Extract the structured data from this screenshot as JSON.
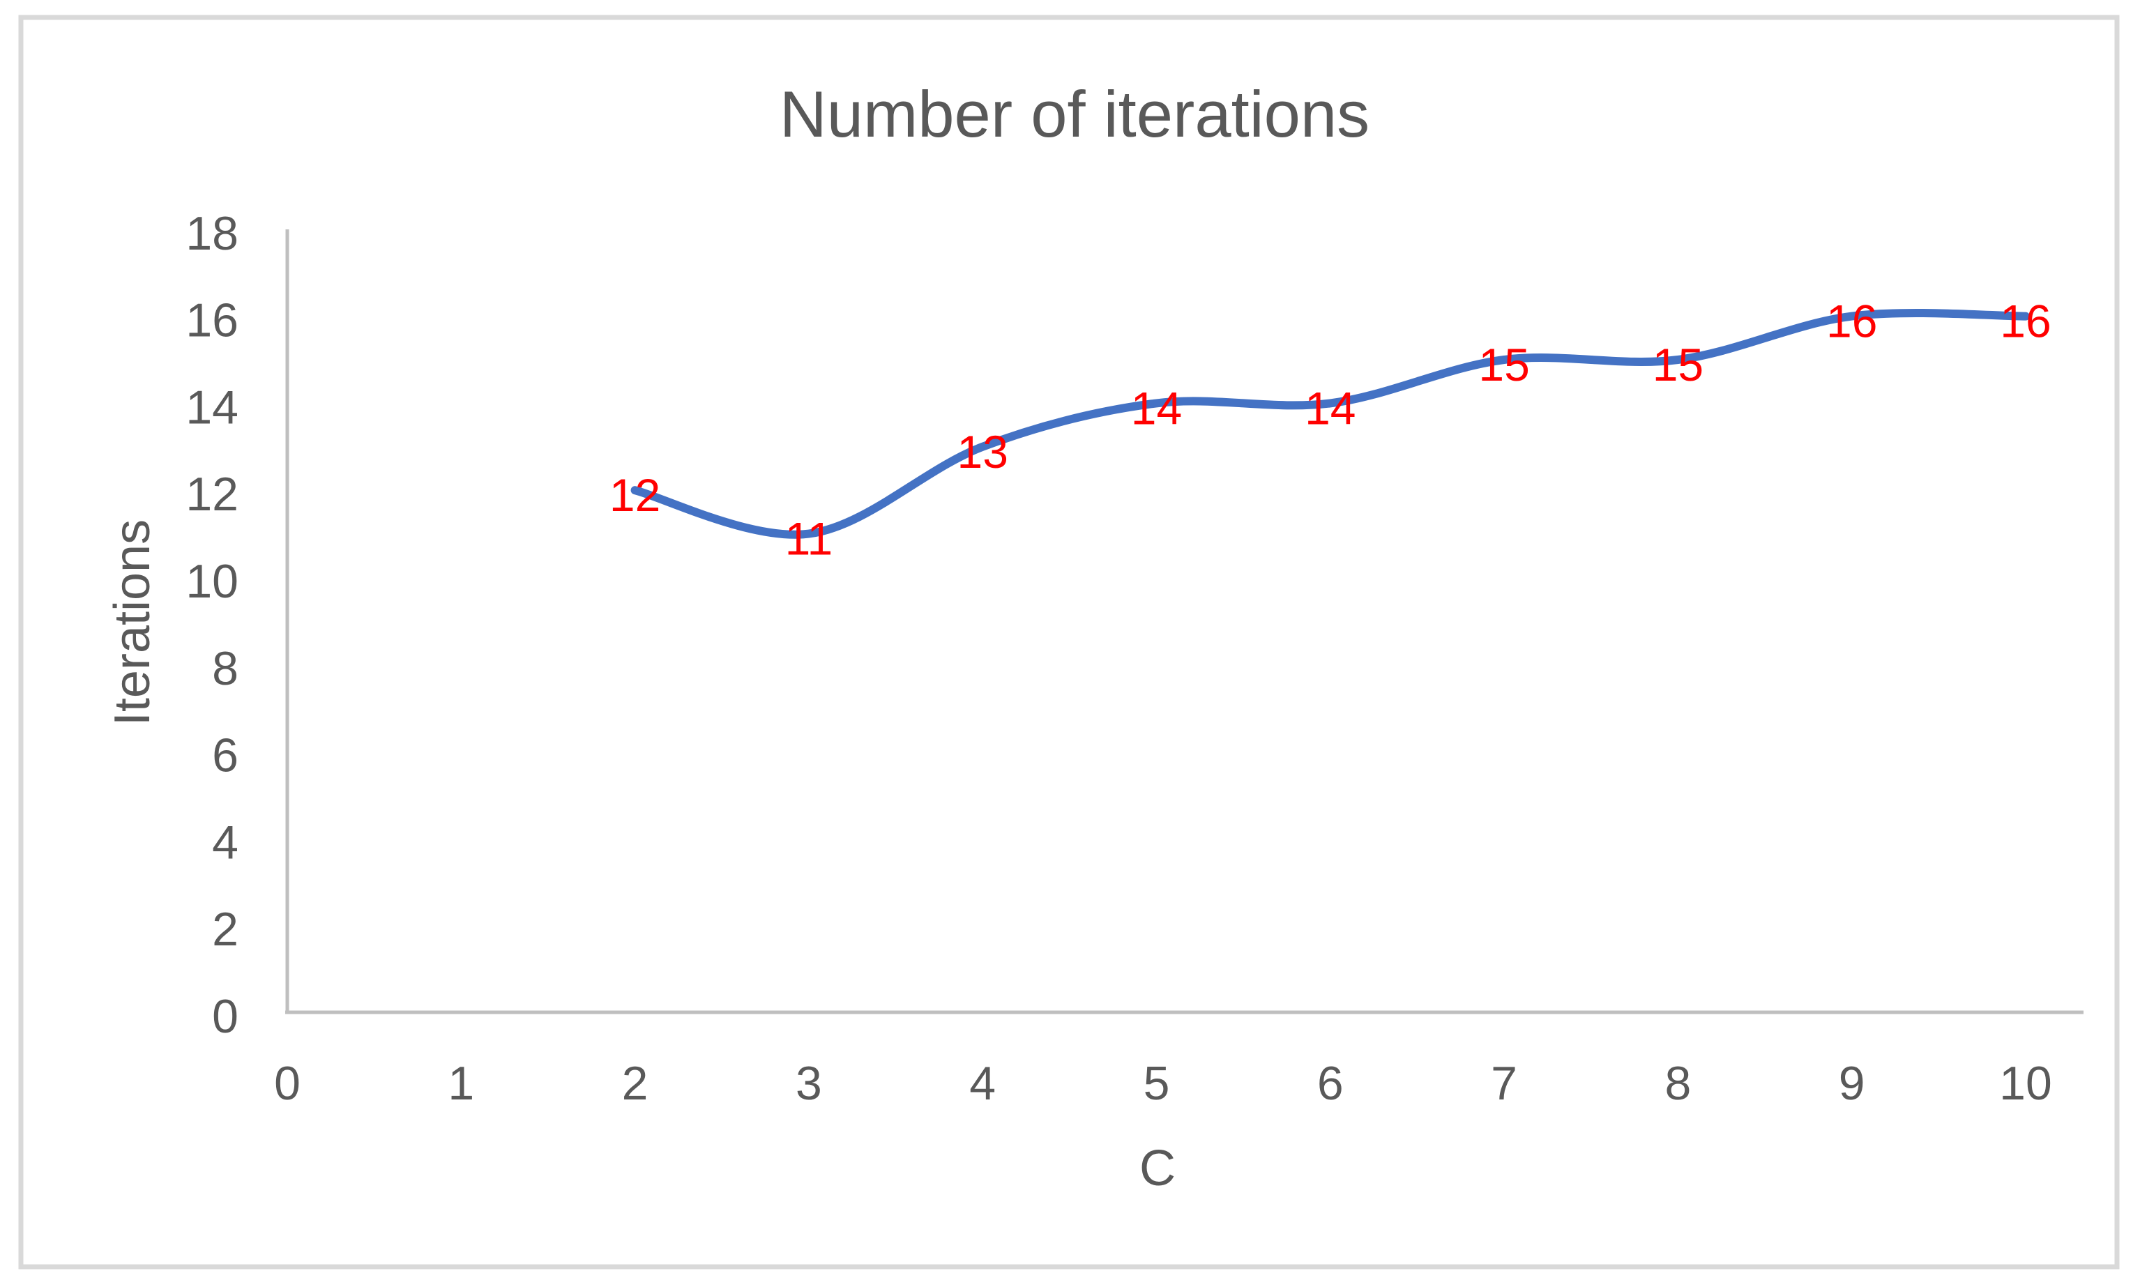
{
  "chart_data": {
    "type": "line",
    "title": "Number of iterations",
    "xlabel": "C",
    "ylabel": "Iterations",
    "x": [
      2,
      3,
      4,
      5,
      6,
      7,
      8,
      9,
      10
    ],
    "values": [
      12,
      11,
      13,
      14,
      14,
      15,
      15,
      16,
      16
    ],
    "data_labels": [
      "12",
      "11",
      "13",
      "14",
      "14",
      "15",
      "15",
      "16",
      "16"
    ],
    "xlim": [
      0,
      10
    ],
    "ylim": [
      0,
      18
    ],
    "x_ticks": [
      0,
      1,
      2,
      3,
      4,
      5,
      6,
      7,
      8,
      9,
      10
    ],
    "y_ticks": [
      0,
      2,
      4,
      6,
      8,
      10,
      12,
      14,
      16,
      18
    ],
    "grid": "off",
    "legend": "none",
    "line_smooth": true,
    "colors": {
      "line": "#4472C4",
      "data_label": "#FF0000",
      "axis_text": "#595959",
      "axis_line": "#BFBFBF",
      "frame_border": "#D9D9D9",
      "background": "#FFFFFF"
    }
  }
}
